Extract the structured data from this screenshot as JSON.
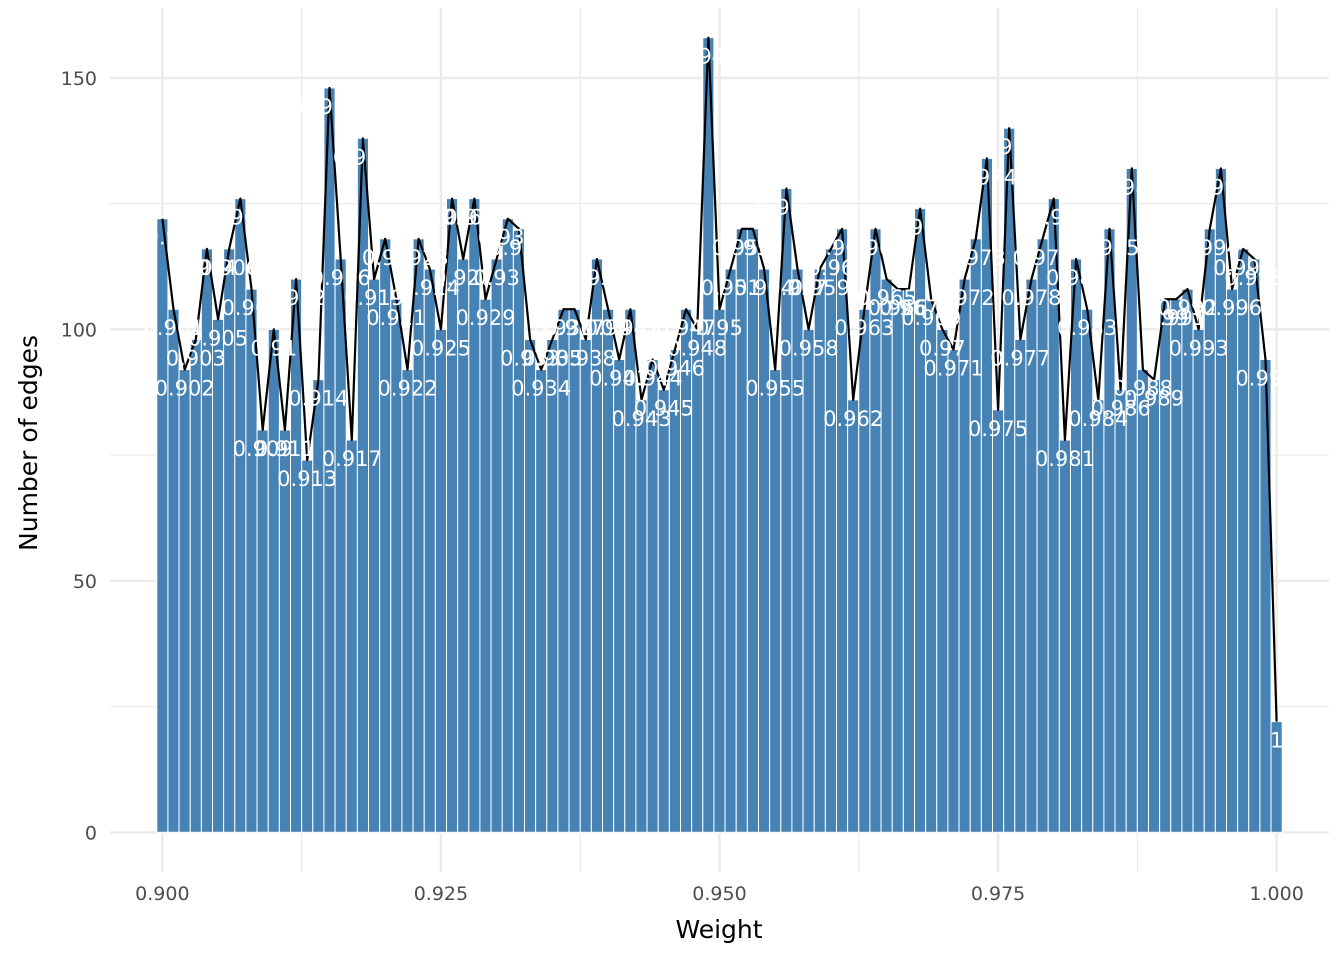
{
  "chart_data": {
    "type": "bar",
    "xlabel": "Weight",
    "ylabel": "Number of edges",
    "xlim": [
      0.8953,
      1.0047
    ],
    "ylim": [
      -7.9,
      163.9
    ],
    "x_ticks": [
      "0.900",
      "0.925",
      "0.950",
      "0.975",
      "1.000"
    ],
    "y_ticks": [
      "0",
      "50",
      "100",
      "150"
    ],
    "x_tick_values": [
      0.9,
      0.925,
      0.95,
      0.975,
      1.0
    ],
    "y_tick_values": [
      0,
      50,
      100,
      150
    ],
    "grid": true,
    "bar_color": "#4682b4",
    "line_color": "#000000",
    "label_color": "#ffffff",
    "grid_color": "#ebebeb",
    "x": [
      0.9,
      0.901,
      0.902,
      0.903,
      0.904,
      0.905,
      0.906,
      0.907,
      0.908,
      0.909,
      0.91,
      0.911,
      0.912,
      0.913,
      0.914,
      0.915,
      0.916,
      0.917,
      0.918,
      0.919,
      0.92,
      0.921,
      0.922,
      0.923,
      0.924,
      0.925,
      0.926,
      0.927,
      0.928,
      0.929,
      0.93,
      0.931,
      0.932,
      0.933,
      0.934,
      0.935,
      0.936,
      0.937,
      0.938,
      0.939,
      0.94,
      0.941,
      0.942,
      0.943,
      0.944,
      0.945,
      0.946,
      0.947,
      0.948,
      0.949,
      0.95,
      0.951,
      0.952,
      0.953,
      0.954,
      0.955,
      0.956,
      0.957,
      0.958,
      0.959,
      0.96,
      0.961,
      0.962,
      0.963,
      0.964,
      0.965,
      0.966,
      0.967,
      0.968,
      0.969,
      0.97,
      0.971,
      0.972,
      0.973,
      0.974,
      0.975,
      0.976,
      0.977,
      0.978,
      0.979,
      0.98,
      0.981,
      0.982,
      0.983,
      0.984,
      0.985,
      0.986,
      0.987,
      0.988,
      0.989,
      0.99,
      0.991,
      0.992,
      0.993,
      0.994,
      0.995,
      0.996,
      0.997,
      0.998,
      0.999,
      1.0
    ],
    "values": [
      122,
      104,
      92,
      98,
      116,
      102,
      116,
      126,
      108,
      80,
      100,
      80,
      110,
      74,
      90,
      148,
      114,
      78,
      138,
      110,
      118,
      106,
      92,
      118,
      112,
      100,
      126,
      114,
      126,
      106,
      114,
      122,
      120,
      98,
      92,
      98,
      104,
      104,
      98,
      114,
      104,
      94,
      104,
      86,
      94,
      88,
      96,
      104,
      100,
      158,
      104,
      112,
      120,
      120,
      112,
      92,
      128,
      112,
      100,
      112,
      116,
      120,
      86,
      104,
      120,
      110,
      108,
      108,
      124,
      106,
      100,
      96,
      110,
      118,
      134,
      84,
      140,
      98,
      110,
      118,
      126,
      78,
      114,
      104,
      86,
      120,
      88,
      132,
      92,
      90,
      106,
      106,
      108,
      100,
      120,
      132,
      108,
      116,
      114,
      94,
      22
    ],
    "labels": [
      "0.9",
      "0.901",
      "0.902",
      "0.903",
      "0.904",
      "0.905",
      "0.906",
      "0.907",
      "0.908",
      "0.909",
      "0.91",
      "0.911",
      "0.912",
      "0.913",
      "0.914",
      "0.915",
      "0.916",
      "0.917",
      "0.918",
      "0.919",
      "0.92",
      "0.921",
      "0.922",
      "0.923",
      "0.924",
      "0.925",
      "0.926",
      "0.927",
      "0.928",
      "0.929",
      "0.93",
      "0.931",
      "0.932",
      "0.933",
      "0.934",
      "0.935",
      "0.936",
      "0.937",
      "0.938",
      "0.939",
      "0.94",
      "0.941",
      "0.942",
      "0.943",
      "0.944",
      "0.945",
      "0.946",
      "0.947",
      "0.948",
      "0.949",
      "0.95",
      "0.951",
      "0.952",
      "0.953",
      "0.954",
      "0.955",
      "0.956",
      "0.957",
      "0.958",
      "0.959",
      "0.96",
      "0.961",
      "0.962",
      "0.963",
      "0.964",
      "0.965",
      "0.966",
      "0.967",
      "0.968",
      "0.969",
      "0.97",
      "0.971",
      "0.972",
      "0.973",
      "0.974",
      "0.975",
      "0.976",
      "0.977",
      "0.978",
      "0.979",
      "0.98",
      "0.981",
      "0.982",
      "0.983",
      "0.984",
      "0.985",
      "0.986",
      "0.987",
      "0.988",
      "0.989",
      "0.99",
      "0.991",
      "0.992",
      "0.993",
      "0.994",
      "0.995",
      "0.996",
      "0.997",
      "0.998",
      "0.999",
      "1"
    ]
  }
}
